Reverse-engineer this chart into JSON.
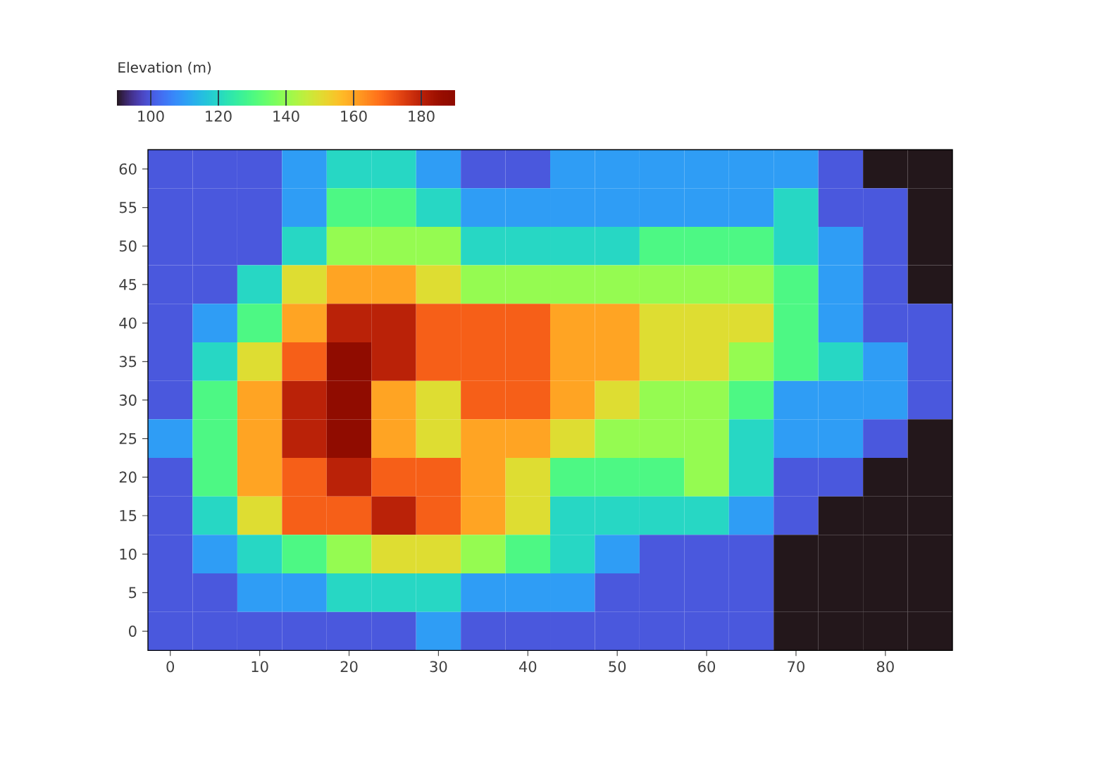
{
  "chart_data": {
    "type": "heatmap",
    "clabel": "Elevation (m)",
    "categories": [
      "0",
      null,
      "10",
      null,
      "20",
      null,
      "30",
      null,
      "40",
      null,
      "50",
      null,
      "60",
      null,
      "70",
      null,
      "80",
      null
    ],
    "y_categories": [
      "60",
      "55",
      "50",
      "45",
      "40",
      "35",
      "30",
      "25",
      "20",
      "15",
      "10",
      "5",
      "0"
    ],
    "cells": [
      [
        100,
        100,
        100,
        110,
        120,
        120,
        110,
        100,
        100,
        110,
        110,
        110,
        110,
        110,
        110,
        100,
        90,
        90
      ],
      [
        100,
        100,
        100,
        110,
        130,
        130,
        120,
        110,
        110,
        110,
        110,
        110,
        110,
        110,
        120,
        100,
        100,
        90
      ],
      [
        100,
        100,
        100,
        120,
        140,
        140,
        140,
        120,
        120,
        120,
        120,
        130,
        130,
        130,
        120,
        110,
        100,
        90
      ],
      [
        100,
        100,
        120,
        150,
        160,
        160,
        150,
        140,
        140,
        140,
        140,
        140,
        140,
        140,
        130,
        110,
        100,
        90
      ],
      [
        100,
        110,
        130,
        160,
        180,
        180,
        170,
        170,
        170,
        160,
        160,
        150,
        150,
        150,
        130,
        110,
        100,
        100
      ],
      [
        100,
        120,
        150,
        170,
        190,
        180,
        170,
        170,
        170,
        160,
        160,
        150,
        150,
        140,
        130,
        120,
        110,
        100
      ],
      [
        100,
        130,
        160,
        180,
        190,
        160,
        150,
        170,
        170,
        160,
        150,
        140,
        140,
        130,
        110,
        110,
        110,
        100
      ],
      [
        110,
        130,
        160,
        180,
        190,
        160,
        150,
        160,
        160,
        150,
        140,
        140,
        140,
        120,
        110,
        110,
        100,
        90
      ],
      [
        100,
        130,
        160,
        170,
        180,
        170,
        170,
        160,
        150,
        130,
        130,
        130,
        140,
        120,
        100,
        100,
        90,
        90
      ],
      [
        100,
        120,
        150,
        170,
        170,
        180,
        170,
        160,
        150,
        120,
        120,
        120,
        120,
        110,
        100,
        90,
        90,
        90
      ],
      [
        100,
        110,
        120,
        130,
        140,
        150,
        150,
        140,
        130,
        120,
        110,
        100,
        100,
        100,
        90,
        90,
        90,
        90
      ],
      [
        100,
        100,
        110,
        110,
        120,
        120,
        120,
        110,
        110,
        110,
        100,
        100,
        100,
        100,
        90,
        90,
        90,
        90
      ],
      [
        100,
        100,
        100,
        100,
        100,
        100,
        110,
        100,
        100,
        100,
        100,
        100,
        100,
        100,
        90,
        90,
        90,
        90
      ]
    ],
    "clim": [
      90,
      190
    ],
    "cticks": [
      100,
      120,
      140,
      160,
      180
    ]
  }
}
